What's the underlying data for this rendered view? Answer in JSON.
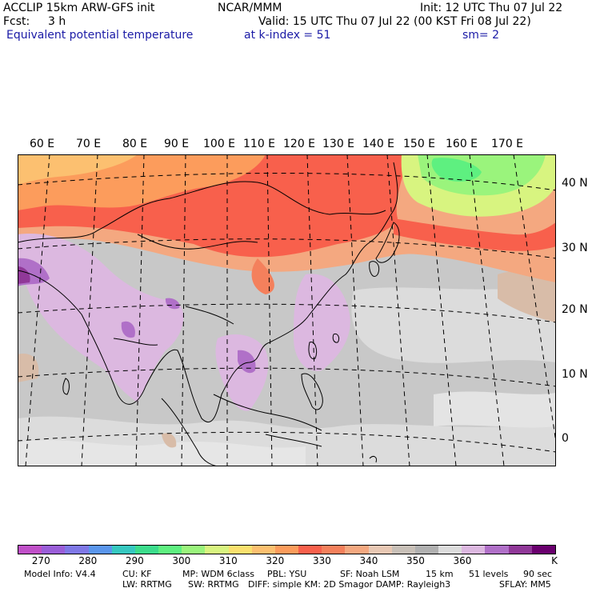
{
  "header": {
    "model": "ACCLIP 15km ARW-GFS init",
    "org": "NCAR/MMM",
    "init": "Init: 12 UTC Thu 07 Jul 22",
    "fcst_label": "Fcst:",
    "fcst_value": "3 h",
    "valid": "Valid: 15 UTC Thu 07 Jul 22 (00 KST Fri 08 Jul 22)",
    "field": "Equivalent potential temperature",
    "level": "at k-index =  51",
    "smooth": "sm= 2"
  },
  "map": {
    "lon_labels": [
      "60 E",
      "70 E",
      "80 E",
      "90 E",
      "100 E",
      "110 E",
      "120 E",
      "130 E",
      "140 E",
      "150 E",
      "160 E",
      "170 E"
    ],
    "lat_labels": [
      "40 N",
      "30 N",
      "20 N",
      "10 N",
      "0"
    ]
  },
  "colorbar": {
    "colors": [
      "#c050c8",
      "#9a5ed8",
      "#7f78e6",
      "#5a96ec",
      "#36c8c0",
      "#3cdc8c",
      "#5ef080",
      "#9af47c",
      "#d8f480",
      "#fae06e",
      "#fcc070",
      "#fc9c5c",
      "#f8604c",
      "#f4805c",
      "#f4a880",
      "#e8c8b4",
      "#c8c0b8",
      "#b0b0b0",
      "#dcdcdc",
      "#dcb8e0",
      "#b070c8",
      "#903898",
      "#6a006e"
    ],
    "labels": [
      "270",
      "280",
      "290",
      "300",
      "310",
      "320",
      "330",
      "340",
      "350",
      "360"
    ],
    "unit": "K"
  },
  "model_info": {
    "line1": [
      "Model Info: V4.4",
      "CU: KF",
      "MP: WDM 6class",
      "PBL: YSU",
      "SF: Noah LSM",
      "15 km",
      "51 levels",
      "90 sec"
    ],
    "line2": [
      "LW: RRTMG",
      "SW: RRTMG",
      "DIFF: simple KM: 2D Smagor DAMP: Rayleigh3",
      "SFLAY: MM5"
    ]
  }
}
